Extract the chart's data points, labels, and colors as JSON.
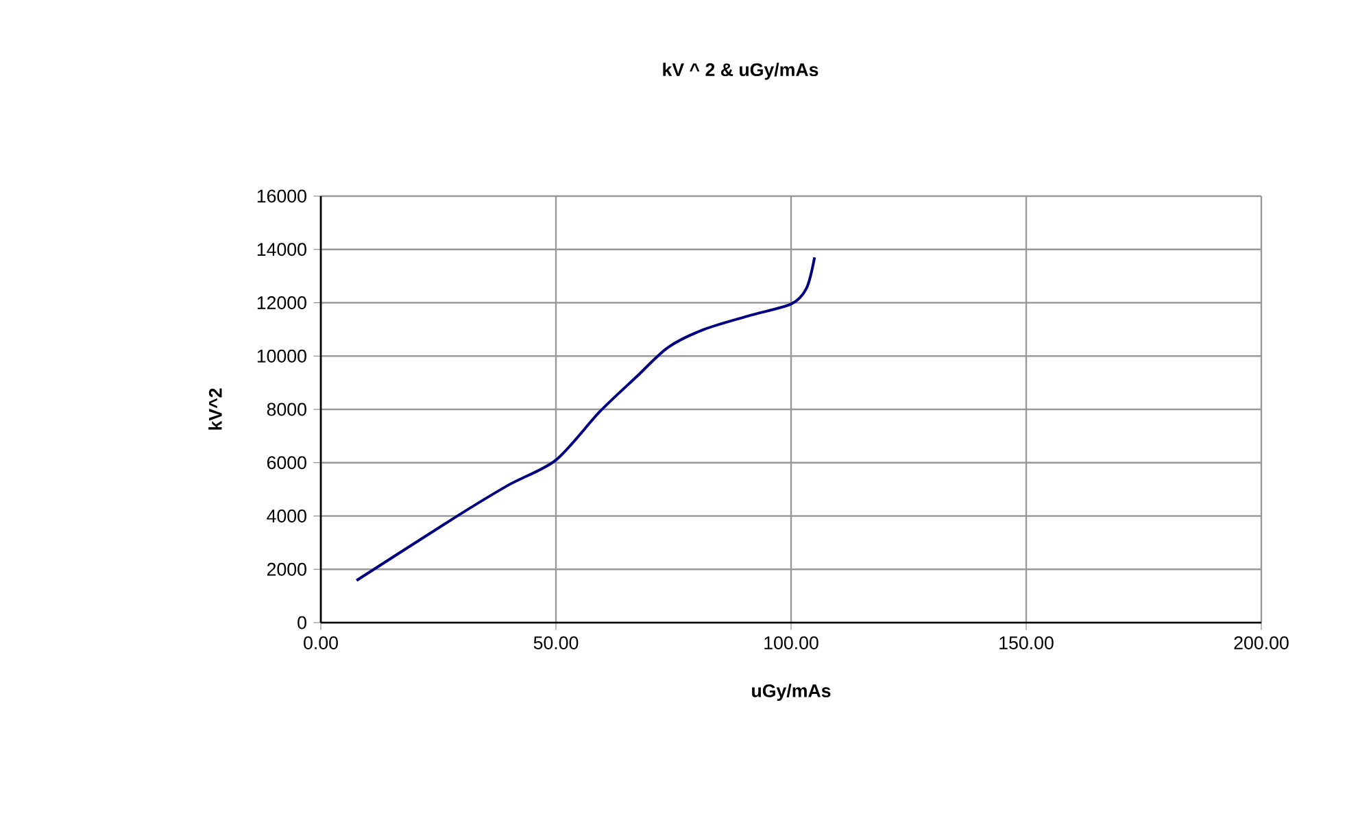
{
  "chart_data": {
    "type": "line",
    "title": "kV ^ 2  &  uGy/mAs",
    "xlabel": "uGy/mAs",
    "ylabel": "kV^2",
    "x": [
      7.6,
      28.3,
      39.9,
      50,
      59.3,
      67,
      73.8,
      81.5,
      91.2,
      100,
      103.3,
      105
    ],
    "series": [
      {
        "color": "#000080",
        "values": [
          1580,
          3920,
          5160,
          6100,
          7910,
          9200,
          10320,
          11000,
          11520,
          11950,
          12550,
          13700
        ]
      }
    ],
    "xlim": [
      0,
      200
    ],
    "ylim": [
      0,
      16000
    ],
    "xticks": [
      {
        "value": 0,
        "label": "0.00"
      },
      {
        "value": 50,
        "label": "50.00"
      },
      {
        "value": 100,
        "label": "100.00"
      },
      {
        "value": 150,
        "label": "150.00"
      },
      {
        "value": 200,
        "label": "200.00"
      }
    ],
    "yticks": [
      0,
      2000,
      4000,
      6000,
      8000,
      10000,
      12000,
      14000,
      16000
    ],
    "grid": true,
    "marker": "none",
    "line_style": "solid"
  }
}
